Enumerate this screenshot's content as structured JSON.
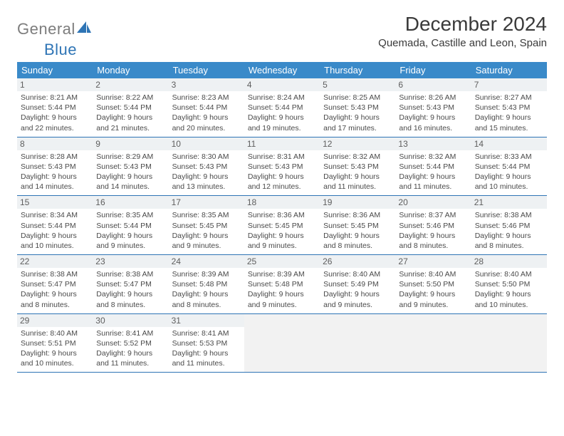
{
  "logo": {
    "part1": "General",
    "part2": "Blue"
  },
  "title": "December 2024",
  "location": "Quemada, Castille and Leon, Spain",
  "colors": {
    "header_bg": "#3a8ac9",
    "header_text": "#ffffff",
    "border": "#2e74b5",
    "daynum_bg": "#eef1f3",
    "empty_bg": "#f2f2f2",
    "logo_gray": "#7d7d7d",
    "logo_blue": "#2e74b5"
  },
  "weekdays": [
    "Sunday",
    "Monday",
    "Tuesday",
    "Wednesday",
    "Thursday",
    "Friday",
    "Saturday"
  ],
  "days": [
    {
      "n": "1",
      "sr": "8:21 AM",
      "ss": "5:44 PM",
      "dl": "9 hours and 22 minutes."
    },
    {
      "n": "2",
      "sr": "8:22 AM",
      "ss": "5:44 PM",
      "dl": "9 hours and 21 minutes."
    },
    {
      "n": "3",
      "sr": "8:23 AM",
      "ss": "5:44 PM",
      "dl": "9 hours and 20 minutes."
    },
    {
      "n": "4",
      "sr": "8:24 AM",
      "ss": "5:44 PM",
      "dl": "9 hours and 19 minutes."
    },
    {
      "n": "5",
      "sr": "8:25 AM",
      "ss": "5:43 PM",
      "dl": "9 hours and 17 minutes."
    },
    {
      "n": "6",
      "sr": "8:26 AM",
      "ss": "5:43 PM",
      "dl": "9 hours and 16 minutes."
    },
    {
      "n": "7",
      "sr": "8:27 AM",
      "ss": "5:43 PM",
      "dl": "9 hours and 15 minutes."
    },
    {
      "n": "8",
      "sr": "8:28 AM",
      "ss": "5:43 PM",
      "dl": "9 hours and 14 minutes."
    },
    {
      "n": "9",
      "sr": "8:29 AM",
      "ss": "5:43 PM",
      "dl": "9 hours and 14 minutes."
    },
    {
      "n": "10",
      "sr": "8:30 AM",
      "ss": "5:43 PM",
      "dl": "9 hours and 13 minutes."
    },
    {
      "n": "11",
      "sr": "8:31 AM",
      "ss": "5:43 PM",
      "dl": "9 hours and 12 minutes."
    },
    {
      "n": "12",
      "sr": "8:32 AM",
      "ss": "5:43 PM",
      "dl": "9 hours and 11 minutes."
    },
    {
      "n": "13",
      "sr": "8:32 AM",
      "ss": "5:44 PM",
      "dl": "9 hours and 11 minutes."
    },
    {
      "n": "14",
      "sr": "8:33 AM",
      "ss": "5:44 PM",
      "dl": "9 hours and 10 minutes."
    },
    {
      "n": "15",
      "sr": "8:34 AM",
      "ss": "5:44 PM",
      "dl": "9 hours and 10 minutes."
    },
    {
      "n": "16",
      "sr": "8:35 AM",
      "ss": "5:44 PM",
      "dl": "9 hours and 9 minutes."
    },
    {
      "n": "17",
      "sr": "8:35 AM",
      "ss": "5:45 PM",
      "dl": "9 hours and 9 minutes."
    },
    {
      "n": "18",
      "sr": "8:36 AM",
      "ss": "5:45 PM",
      "dl": "9 hours and 9 minutes."
    },
    {
      "n": "19",
      "sr": "8:36 AM",
      "ss": "5:45 PM",
      "dl": "9 hours and 8 minutes."
    },
    {
      "n": "20",
      "sr": "8:37 AM",
      "ss": "5:46 PM",
      "dl": "9 hours and 8 minutes."
    },
    {
      "n": "21",
      "sr": "8:38 AM",
      "ss": "5:46 PM",
      "dl": "9 hours and 8 minutes."
    },
    {
      "n": "22",
      "sr": "8:38 AM",
      "ss": "5:47 PM",
      "dl": "9 hours and 8 minutes."
    },
    {
      "n": "23",
      "sr": "8:38 AM",
      "ss": "5:47 PM",
      "dl": "9 hours and 8 minutes."
    },
    {
      "n": "24",
      "sr": "8:39 AM",
      "ss": "5:48 PM",
      "dl": "9 hours and 8 minutes."
    },
    {
      "n": "25",
      "sr": "8:39 AM",
      "ss": "5:48 PM",
      "dl": "9 hours and 9 minutes."
    },
    {
      "n": "26",
      "sr": "8:40 AM",
      "ss": "5:49 PM",
      "dl": "9 hours and 9 minutes."
    },
    {
      "n": "27",
      "sr": "8:40 AM",
      "ss": "5:50 PM",
      "dl": "9 hours and 9 minutes."
    },
    {
      "n": "28",
      "sr": "8:40 AM",
      "ss": "5:50 PM",
      "dl": "9 hours and 10 minutes."
    },
    {
      "n": "29",
      "sr": "8:40 AM",
      "ss": "5:51 PM",
      "dl": "9 hours and 10 minutes."
    },
    {
      "n": "30",
      "sr": "8:41 AM",
      "ss": "5:52 PM",
      "dl": "9 hours and 11 minutes."
    },
    {
      "n": "31",
      "sr": "8:41 AM",
      "ss": "5:53 PM",
      "dl": "9 hours and 11 minutes."
    }
  ],
  "labels": {
    "sunrise": "Sunrise:",
    "sunset": "Sunset:",
    "daylight": "Daylight:"
  },
  "layout": {
    "start_weekday": 0,
    "total_cells": 35,
    "cols": 7
  }
}
